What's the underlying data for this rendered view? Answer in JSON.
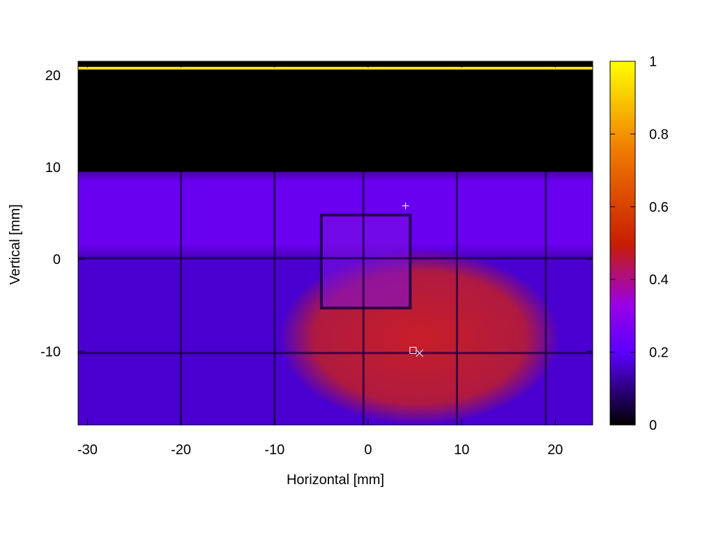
{
  "chart_data": {
    "type": "heatmap",
    "title": "",
    "xlabel": "Horizontal [mm]",
    "ylabel": "Vertical [mm]",
    "xlim": [
      -31,
      24
    ],
    "ylim": [
      -18,
      21.5
    ],
    "x_ticks": [
      -30,
      -20,
      -10,
      0,
      10,
      20
    ],
    "y_ticks": [
      -10,
      0,
      10,
      20
    ],
    "x_tick_labels": [
      "-30",
      "-20",
      "-10",
      "0",
      "10",
      "20"
    ],
    "y_tick_labels": [
      "-10",
      "0",
      "10",
      "20"
    ],
    "colorbar": {
      "range": [
        0,
        1
      ],
      "ticks": [
        0,
        0.2,
        0.4,
        0.6,
        0.8,
        1
      ],
      "tick_labels": [
        "0",
        "0.2",
        "0.4",
        "0.6",
        "0.8",
        "1"
      ],
      "colormap": [
        {
          "value": 0,
          "color": "#000000"
        },
        {
          "value": 0.2,
          "color": "#5b00ff"
        },
        {
          "value": 0.33,
          "color": "#9a00e6"
        },
        {
          "value": 0.5,
          "color": "#c81e00"
        },
        {
          "value": 0.75,
          "color": "#f07800"
        },
        {
          "value": 1,
          "color": "#ffff00"
        }
      ]
    },
    "background_color": "#000000",
    "regions": [
      {
        "name": "top-bright-line",
        "shape": "rect",
        "x_range": [
          -31,
          24
        ],
        "y_range": [
          20.6,
          20.9
        ],
        "value": 0.95,
        "color": "#ffe800"
      },
      {
        "name": "top-dark-band",
        "shape": "rect",
        "x_range": [
          -31,
          24
        ],
        "y_range": [
          9.5,
          20.6
        ],
        "value": 0.0,
        "color": "#000000"
      },
      {
        "name": "upper-purple-band",
        "shape": "rect",
        "x_range": [
          -31,
          24
        ],
        "y_range": [
          0.3,
          9.5
        ],
        "value": 0.25,
        "color": "#6a00f0"
      },
      {
        "name": "lower-purple-region",
        "shape": "rect",
        "x_range": [
          -31,
          24
        ],
        "y_range": [
          -18,
          0.3
        ],
        "value": 0.2,
        "color": "#4a00d0"
      },
      {
        "name": "central-red-spot",
        "shape": "ellipse",
        "center": [
          5.5,
          -8.5
        ],
        "radii": [
          15,
          9.5
        ],
        "value": 0.47,
        "color": "#c81e28"
      },
      {
        "name": "inner-square",
        "shape": "rect",
        "x_range": [
          -5,
          4.5
        ],
        "y_range": [
          -5.3,
          4.8
        ],
        "value": 0.28,
        "color": "#7a10e0"
      }
    ],
    "grid_lines": {
      "vertical_x": [
        -20,
        -10,
        -0.5,
        9.5,
        19
      ],
      "horizontal_y": [
        0.1,
        -10.2
      ],
      "square_edges_x": [
        -5,
        4.5
      ],
      "square_edges_y": [
        -5.3,
        4.8
      ],
      "color": "#1a0040"
    },
    "markers": [
      {
        "symbol": "plus",
        "x": 4,
        "y": 5.8,
        "color": "#ffffff"
      },
      {
        "symbol": "square",
        "x": 4.8,
        "y": -9.9,
        "color": "#ffffff"
      },
      {
        "symbol": "cross",
        "x": 5.5,
        "y": -10.2,
        "color": "#ffffff"
      }
    ],
    "grid": false,
    "legend": "colorbar-right"
  }
}
